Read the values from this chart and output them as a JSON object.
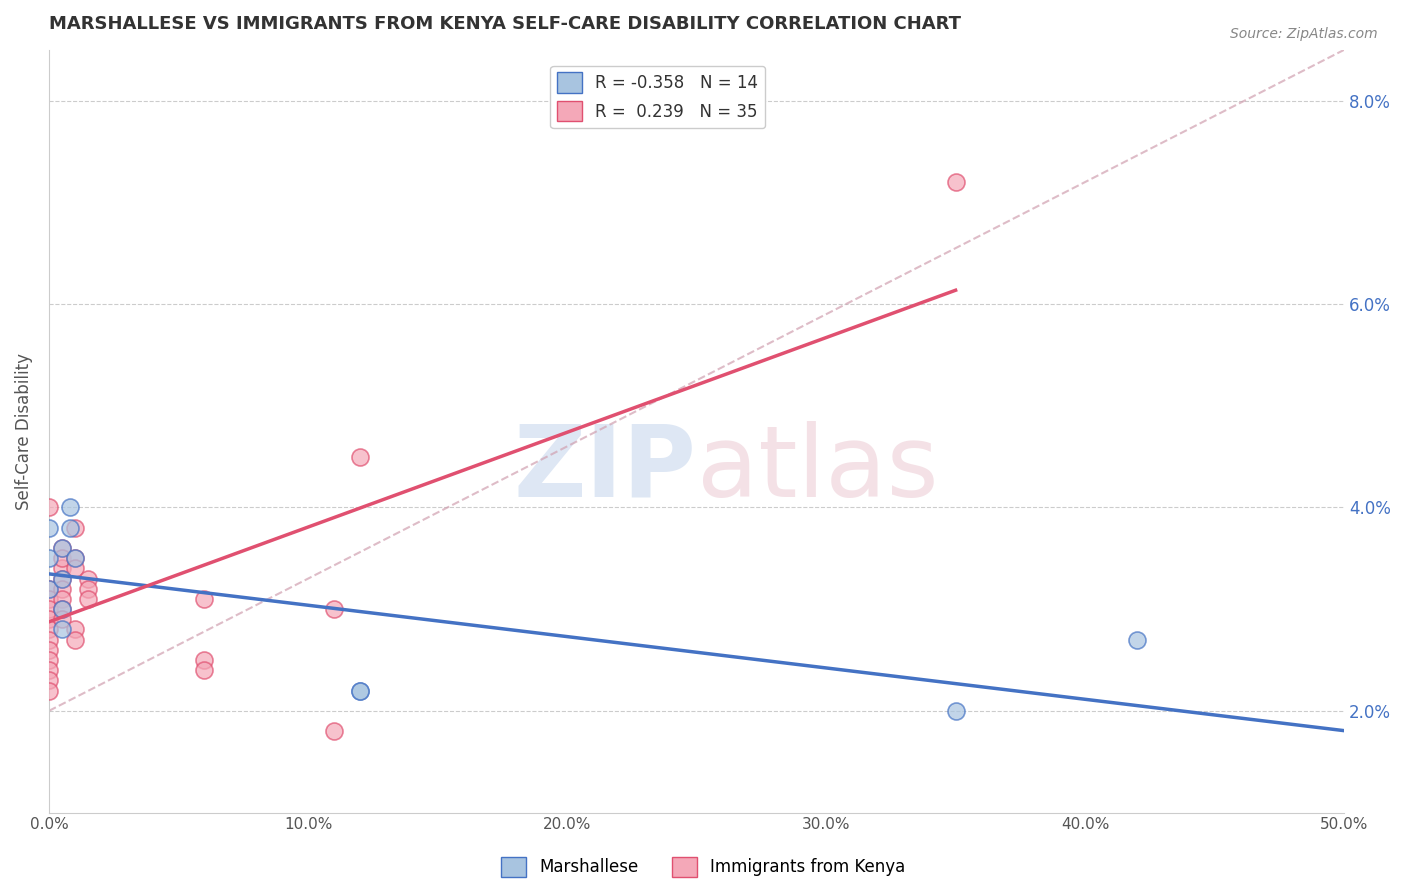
{
  "title": "MARSHALLESE VS IMMIGRANTS FROM KENYA SELF-CARE DISABILITY CORRELATION CHART",
  "source": "Source: ZipAtlas.com",
  "ylabel": "Self-Care Disability",
  "xlabel_ticks": [
    "0.0%",
    "10.0%",
    "20.0%",
    "30.0%",
    "40.0%",
    "50.0%"
  ],
  "xlabel_vals": [
    0.0,
    0.1,
    0.2,
    0.3,
    0.4,
    0.5
  ],
  "ylabel_ticks": [
    "2.0%",
    "4.0%",
    "6.0%",
    "8.0%"
  ],
  "ylabel_vals": [
    0.02,
    0.04,
    0.06,
    0.08
  ],
  "xlim": [
    0.0,
    0.5
  ],
  "ylim": [
    0.01,
    0.085
  ],
  "blue_R": -0.358,
  "blue_N": 14,
  "pink_R": 0.239,
  "pink_N": 35,
  "blue_color": "#a8c4e0",
  "pink_color": "#f4a8b8",
  "blue_line_color": "#4472c4",
  "pink_line_color": "#e05070",
  "diagonal_color": "#d0a0b0",
  "watermark": "ZIPatlas",
  "blue_points_x": [
    0.0,
    0.0,
    0.0,
    0.005,
    0.005,
    0.005,
    0.005,
    0.008,
    0.008,
    0.01,
    0.12,
    0.12,
    0.42,
    0.35
  ],
  "blue_points_y": [
    0.035,
    0.038,
    0.032,
    0.036,
    0.033,
    0.03,
    0.028,
    0.04,
    0.038,
    0.035,
    0.022,
    0.022,
    0.027,
    0.02
  ],
  "pink_points_x": [
    0.0,
    0.0,
    0.0,
    0.0,
    0.0,
    0.0,
    0.0,
    0.0,
    0.0,
    0.0,
    0.0,
    0.0,
    0.005,
    0.005,
    0.005,
    0.005,
    0.005,
    0.005,
    0.005,
    0.005,
    0.01,
    0.01,
    0.01,
    0.01,
    0.01,
    0.015,
    0.015,
    0.015,
    0.06,
    0.06,
    0.06,
    0.11,
    0.11,
    0.12,
    0.35
  ],
  "pink_points_y": [
    0.032,
    0.031,
    0.03,
    0.029,
    0.028,
    0.027,
    0.026,
    0.025,
    0.024,
    0.023,
    0.022,
    0.04,
    0.036,
    0.034,
    0.033,
    0.032,
    0.031,
    0.03,
    0.029,
    0.035,
    0.038,
    0.035,
    0.034,
    0.028,
    0.027,
    0.033,
    0.032,
    0.031,
    0.031,
    0.025,
    0.024,
    0.03,
    0.018,
    0.045,
    0.072
  ]
}
